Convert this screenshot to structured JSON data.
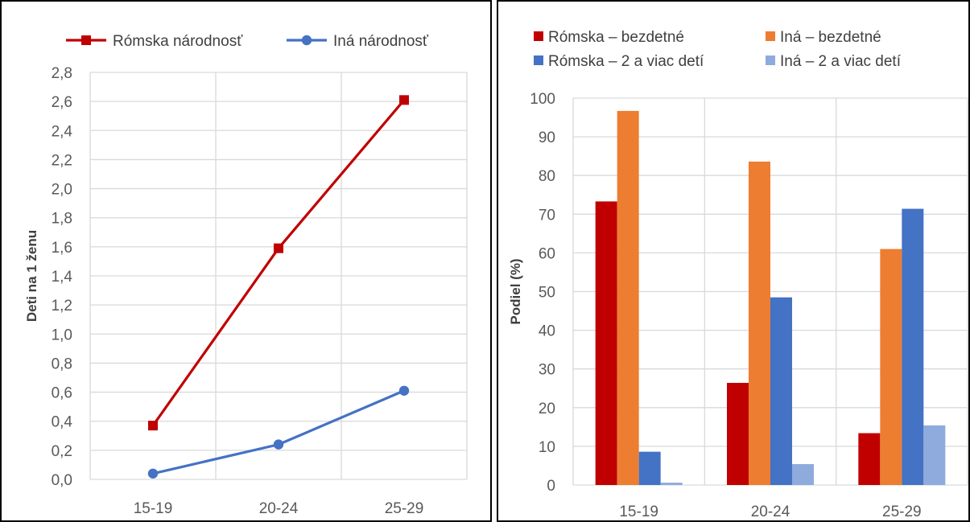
{
  "chart_data": [
    {
      "type": "line",
      "categories": [
        "15-19",
        "20-24",
        "25-29"
      ],
      "series": [
        {
          "name": "Rómska národnosť",
          "values": [
            0.37,
            1.59,
            2.61
          ],
          "color": "#C00000",
          "marker": "square"
        },
        {
          "name": "Iná národnosť",
          "values": [
            0.04,
            0.24,
            0.61
          ],
          "color": "#4472C4",
          "marker": "circle"
        }
      ],
      "xlabel": "",
      "ylabel": "Deti na 1 ženu",
      "ylim": [
        0,
        2.8
      ],
      "yticks": [
        "0,0",
        "0,2",
        "0,4",
        "0,6",
        "0,8",
        "1,0",
        "1,2",
        "1,4",
        "1,6",
        "1,8",
        "2,0",
        "2,2",
        "2,4",
        "2,6",
        "2,8"
      ],
      "grid": true,
      "legend": "top"
    },
    {
      "type": "bar",
      "categories": [
        "15-19",
        "20-24",
        "25-29"
      ],
      "series": [
        {
          "name": "Rómska – bezdetné",
          "values": [
            73.3,
            26.4,
            13.4
          ],
          "color": "#C00000"
        },
        {
          "name": "Iná – bezdetné",
          "values": [
            96.7,
            83.6,
            61.0
          ],
          "color": "#ED7D31"
        },
        {
          "name": "Rómska – 2 a viac detí",
          "values": [
            8.6,
            48.5,
            71.4
          ],
          "color": "#4472C4"
        },
        {
          "name": "Iná – 2 a viac detí",
          "values": [
            0.6,
            5.4,
            15.4
          ],
          "color": "#8FAADC"
        }
      ],
      "xlabel": "",
      "ylabel": "Podiel (%)",
      "ylim": [
        0,
        100
      ],
      "yticks": [
        "0",
        "10",
        "20",
        "30",
        "40",
        "50",
        "60",
        "70",
        "80",
        "90",
        "100"
      ],
      "grid": true,
      "legend": "top"
    }
  ]
}
